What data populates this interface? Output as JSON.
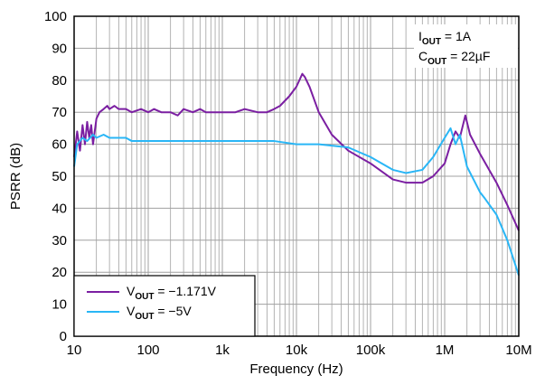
{
  "chart_data": {
    "type": "line",
    "xlabel": "Frequency (Hz)",
    "ylabel": "PSRR (dB)",
    "x_scale": "log",
    "xlim": [
      10,
      10000000
    ],
    "ylim": [
      0,
      100
    ],
    "x_ticks": [
      {
        "value": 10,
        "label": "10"
      },
      {
        "value": 100,
        "label": "100"
      },
      {
        "value": 1000,
        "label": "1k"
      },
      {
        "value": 10000,
        "label": "10k"
      },
      {
        "value": 100000,
        "label": "100k"
      },
      {
        "value": 1000000,
        "label": "1M"
      },
      {
        "value": 10000000,
        "label": "10M"
      }
    ],
    "y_ticks": [
      0,
      10,
      20,
      30,
      40,
      50,
      60,
      70,
      80,
      90,
      100
    ],
    "grid": true,
    "legend_position": "bottom-left",
    "annotations": [
      {
        "main": "I",
        "sub": "OUT",
        "rest": " = 1A"
      },
      {
        "main": "C",
        "sub": "OUT",
        "rest": " = 22µF"
      }
    ],
    "series": [
      {
        "legend": {
          "main": "V",
          "sub": "OUT",
          "rest": " = −1.171V"
        },
        "color": "#7b1fa2",
        "points": [
          [
            10,
            56
          ],
          [
            11,
            64
          ],
          [
            12,
            58
          ],
          [
            13,
            66
          ],
          [
            14,
            60
          ],
          [
            15,
            67
          ],
          [
            16,
            62
          ],
          [
            17,
            66
          ],
          [
            18,
            60
          ],
          [
            20,
            68
          ],
          [
            22,
            70
          ],
          [
            25,
            71
          ],
          [
            28,
            72
          ],
          [
            30,
            71
          ],
          [
            35,
            72
          ],
          [
            40,
            71
          ],
          [
            50,
            71
          ],
          [
            60,
            70
          ],
          [
            80,
            71
          ],
          [
            100,
            70
          ],
          [
            120,
            71
          ],
          [
            150,
            70
          ],
          [
            200,
            70
          ],
          [
            250,
            69
          ],
          [
            300,
            71
          ],
          [
            400,
            70
          ],
          [
            500,
            71
          ],
          [
            600,
            70
          ],
          [
            800,
            70
          ],
          [
            1000,
            70
          ],
          [
            1500,
            70
          ],
          [
            2000,
            71
          ],
          [
            3000,
            70
          ],
          [
            4000,
            70
          ],
          [
            5000,
            71
          ],
          [
            6000,
            72
          ],
          [
            8000,
            75
          ],
          [
            10000,
            78
          ],
          [
            12000,
            82
          ],
          [
            13000,
            81
          ],
          [
            15000,
            78
          ],
          [
            20000,
            70
          ],
          [
            30000,
            63
          ],
          [
            50000,
            58
          ],
          [
            100000,
            54
          ],
          [
            200000,
            49
          ],
          [
            300000,
            48
          ],
          [
            500000,
            48
          ],
          [
            700000,
            50
          ],
          [
            1000000,
            54
          ],
          [
            1200000,
            60
          ],
          [
            1400000,
            64
          ],
          [
            1600000,
            62
          ],
          [
            1900000,
            69
          ],
          [
            2200000,
            63
          ],
          [
            3000000,
            57
          ],
          [
            5000000,
            48
          ],
          [
            7000000,
            41
          ],
          [
            10000000,
            33
          ]
        ]
      },
      {
        "legend": {
          "main": "V",
          "sub": "OUT",
          "rest": " = −5V"
        },
        "color": "#29b6f6",
        "points": [
          [
            10,
            53
          ],
          [
            11,
            60
          ],
          [
            13,
            62
          ],
          [
            15,
            61
          ],
          [
            18,
            63
          ],
          [
            20,
            62
          ],
          [
            25,
            63
          ],
          [
            30,
            62
          ],
          [
            40,
            62
          ],
          [
            50,
            62
          ],
          [
            60,
            61
          ],
          [
            80,
            61
          ],
          [
            100,
            61
          ],
          [
            150,
            61
          ],
          [
            200,
            61
          ],
          [
            300,
            61
          ],
          [
            500,
            61
          ],
          [
            1000,
            61
          ],
          [
            2000,
            61
          ],
          [
            5000,
            61
          ],
          [
            10000,
            60
          ],
          [
            20000,
            60
          ],
          [
            50000,
            59
          ],
          [
            100000,
            56
          ],
          [
            200000,
            52
          ],
          [
            300000,
            51
          ],
          [
            500000,
            52
          ],
          [
            700000,
            56
          ],
          [
            1000000,
            62
          ],
          [
            1200000,
            65
          ],
          [
            1400000,
            60
          ],
          [
            1600000,
            63
          ],
          [
            2000000,
            53
          ],
          [
            3000000,
            45
          ],
          [
            3500000,
            43
          ],
          [
            5000000,
            38
          ],
          [
            7000000,
            30
          ],
          [
            10000000,
            19
          ]
        ]
      }
    ]
  }
}
